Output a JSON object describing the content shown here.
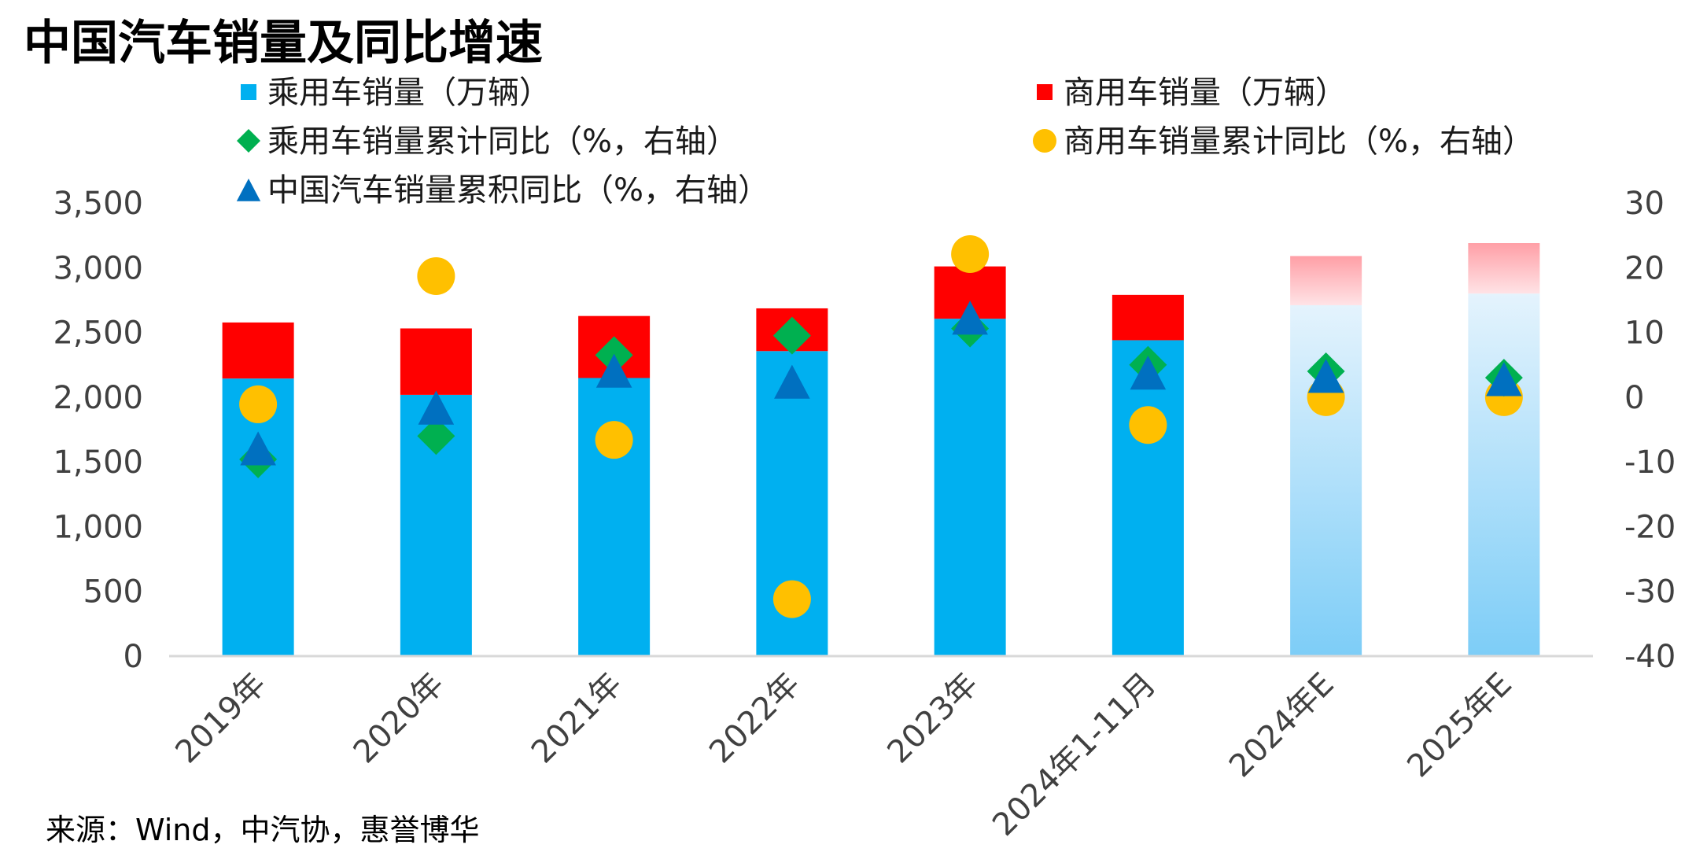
{
  "title": "中国汽车销量及同比增速",
  "source": "来源：Wind，中汽协，惠誉博华",
  "legend": [
    {
      "label": "乘用车销量（万辆）",
      "marker": "square",
      "color": "#00B0F0"
    },
    {
      "label": "商用车销量（万辆）",
      "marker": "square",
      "color": "#FF0000"
    },
    {
      "label": "乘用车销量累计同比（%，右轴）",
      "marker": "diamond",
      "color": "#00B050"
    },
    {
      "label": "商用车销量累计同比（%，右轴）",
      "marker": "circle",
      "color": "#FFC000"
    },
    {
      "label": "中国汽车销量累积同比（%，右轴）",
      "marker": "triangle",
      "color": "#0070C0"
    }
  ],
  "chart_data": {
    "type": "bar",
    "stacked": true,
    "categories": [
      "2019年",
      "2020年",
      "2021年",
      "2022年",
      "2023年",
      "2024年1-11月",
      "2024年E",
      "2025年E"
    ],
    "estimate_categories": [
      "2024年E",
      "2025年E"
    ],
    "series": [
      {
        "name": "乘用车销量（万辆）",
        "axis": "left",
        "kind": "bar",
        "color": "#00B0F0",
        "values": [
          2144,
          2018,
          2148,
          2356,
          2606,
          2440,
          2710,
          2800
        ]
      },
      {
        "name": "商用车销量（万辆）",
        "axis": "left",
        "kind": "bar",
        "color": "#FF0000",
        "values": [
          433,
          513,
          479,
          330,
          404,
          350,
          380,
          390
        ]
      },
      {
        "name": "乘用车销量累计同比（%，右轴）",
        "axis": "right",
        "kind": "diamond",
        "color": "#00B050",
        "values": [
          -9.6,
          -6.0,
          6.5,
          9.5,
          10.6,
          5.0,
          4.0,
          3.0
        ]
      },
      {
        "name": "商用车销量累计同比（%，右轴）",
        "axis": "right",
        "kind": "circle",
        "color": "#FFC000",
        "values": [
          -1.1,
          18.7,
          -6.6,
          -31.2,
          22.1,
          -4.3,
          0.0,
          0.0
        ]
      },
      {
        "name": "中国汽车销量累积同比（%，右轴）",
        "axis": "right",
        "kind": "triangle",
        "color": "#0070C0",
        "values": [
          -8.2,
          -1.9,
          3.8,
          2.1,
          12.0,
          3.5,
          3.0,
          2.5
        ]
      }
    ],
    "left_axis": {
      "min": 0,
      "max": 3500,
      "ticks": [
        0,
        500,
        1000,
        1500,
        2000,
        2500,
        3000,
        3500
      ],
      "tick_labels": [
        "0",
        "500",
        "1,000",
        "1,500",
        "2,000",
        "2,500",
        "3,000",
        "3,500"
      ]
    },
    "right_axis": {
      "min": -40,
      "max": 30,
      "ticks": [
        -40,
        -30,
        -20,
        -10,
        0,
        10,
        20,
        30
      ],
      "tick_labels": [
        "-40",
        "-30",
        "-20",
        "-10",
        "0",
        "10",
        "20",
        "30"
      ]
    },
    "grid": false,
    "legend_position": "top"
  }
}
